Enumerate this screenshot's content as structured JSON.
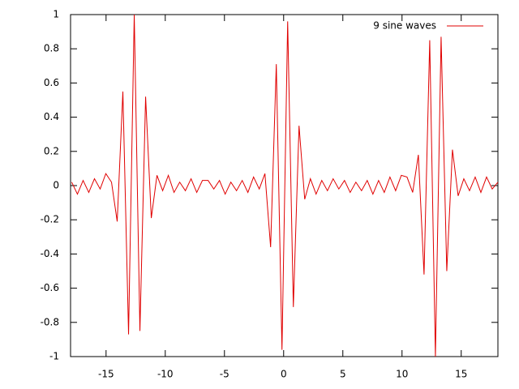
{
  "chart_data": {
    "type": "line",
    "x": [
      -17.9,
      -17.42,
      -16.94,
      -16.46,
      -15.98,
      -15.5,
      -15.02,
      -14.54,
      -14.06,
      -13.58,
      -13.1,
      -12.62,
      -12.14,
      -11.66,
      -11.18,
      -10.7,
      -10.22,
      -9.74,
      -9.26,
      -8.78,
      -8.3,
      -7.82,
      -7.34,
      -6.86,
      -6.38,
      -5.9,
      -5.42,
      -4.94,
      -4.46,
      -3.98,
      -3.5,
      -3.02,
      -2.54,
      -2.06,
      -1.58,
      -1.1,
      -0.62,
      -0.14,
      0.34,
      0.82,
      1.3,
      1.78,
      2.26,
      2.74,
      3.22,
      3.7,
      4.18,
      4.66,
      5.14,
      5.62,
      6.1,
      6.58,
      7.06,
      7.54,
      8.02,
      8.5,
      8.98,
      9.46,
      9.94,
      10.42,
      10.9,
      11.38,
      11.86,
      12.34,
      12.82,
      13.3,
      13.78,
      14.26,
      14.74,
      15.22,
      15.7,
      16.18,
      16.66,
      17.14,
      17.62,
      18.1
    ],
    "series": [
      {
        "name": "9 sine waves",
        "color": "#e00000",
        "values": [
          0.02,
          -0.05,
          0.03,
          -0.04,
          0.04,
          -0.02,
          0.07,
          0.02,
          -0.21,
          0.55,
          -0.87,
          1.0,
          -0.85,
          0.52,
          -0.19,
          0.06,
          -0.03,
          0.06,
          -0.04,
          0.02,
          -0.03,
          0.04,
          -0.04,
          0.03,
          0.03,
          -0.02,
          0.03,
          -0.05,
          0.02,
          -0.03,
          0.03,
          -0.04,
          0.05,
          -0.02,
          0.07,
          -0.36,
          0.71,
          -0.96,
          0.96,
          -0.71,
          0.35,
          -0.08,
          0.04,
          -0.05,
          0.03,
          -0.03,
          0.04,
          -0.02,
          0.03,
          -0.04,
          0.02,
          -0.03,
          0.03,
          -0.05,
          0.03,
          -0.04,
          0.05,
          -0.03,
          0.06,
          0.05,
          -0.04,
          0.18,
          -0.52,
          0.85,
          -1.0,
          0.87,
          -0.5,
          0.21,
          -0.06,
          0.04,
          -0.03,
          0.05,
          -0.04,
          0.05,
          -0.02,
          0.02
        ]
      }
    ],
    "xlim": [
      -18,
      18.1
    ],
    "ylim": [
      -1,
      1
    ],
    "xticks": [
      -15,
      -10,
      -5,
      0,
      5,
      10,
      15
    ],
    "yticks": [
      -1,
      -0.8,
      -0.6,
      -0.4,
      -0.2,
      0,
      0.2,
      0.4,
      0.6,
      0.8,
      1
    ],
    "legend": "top-right"
  }
}
